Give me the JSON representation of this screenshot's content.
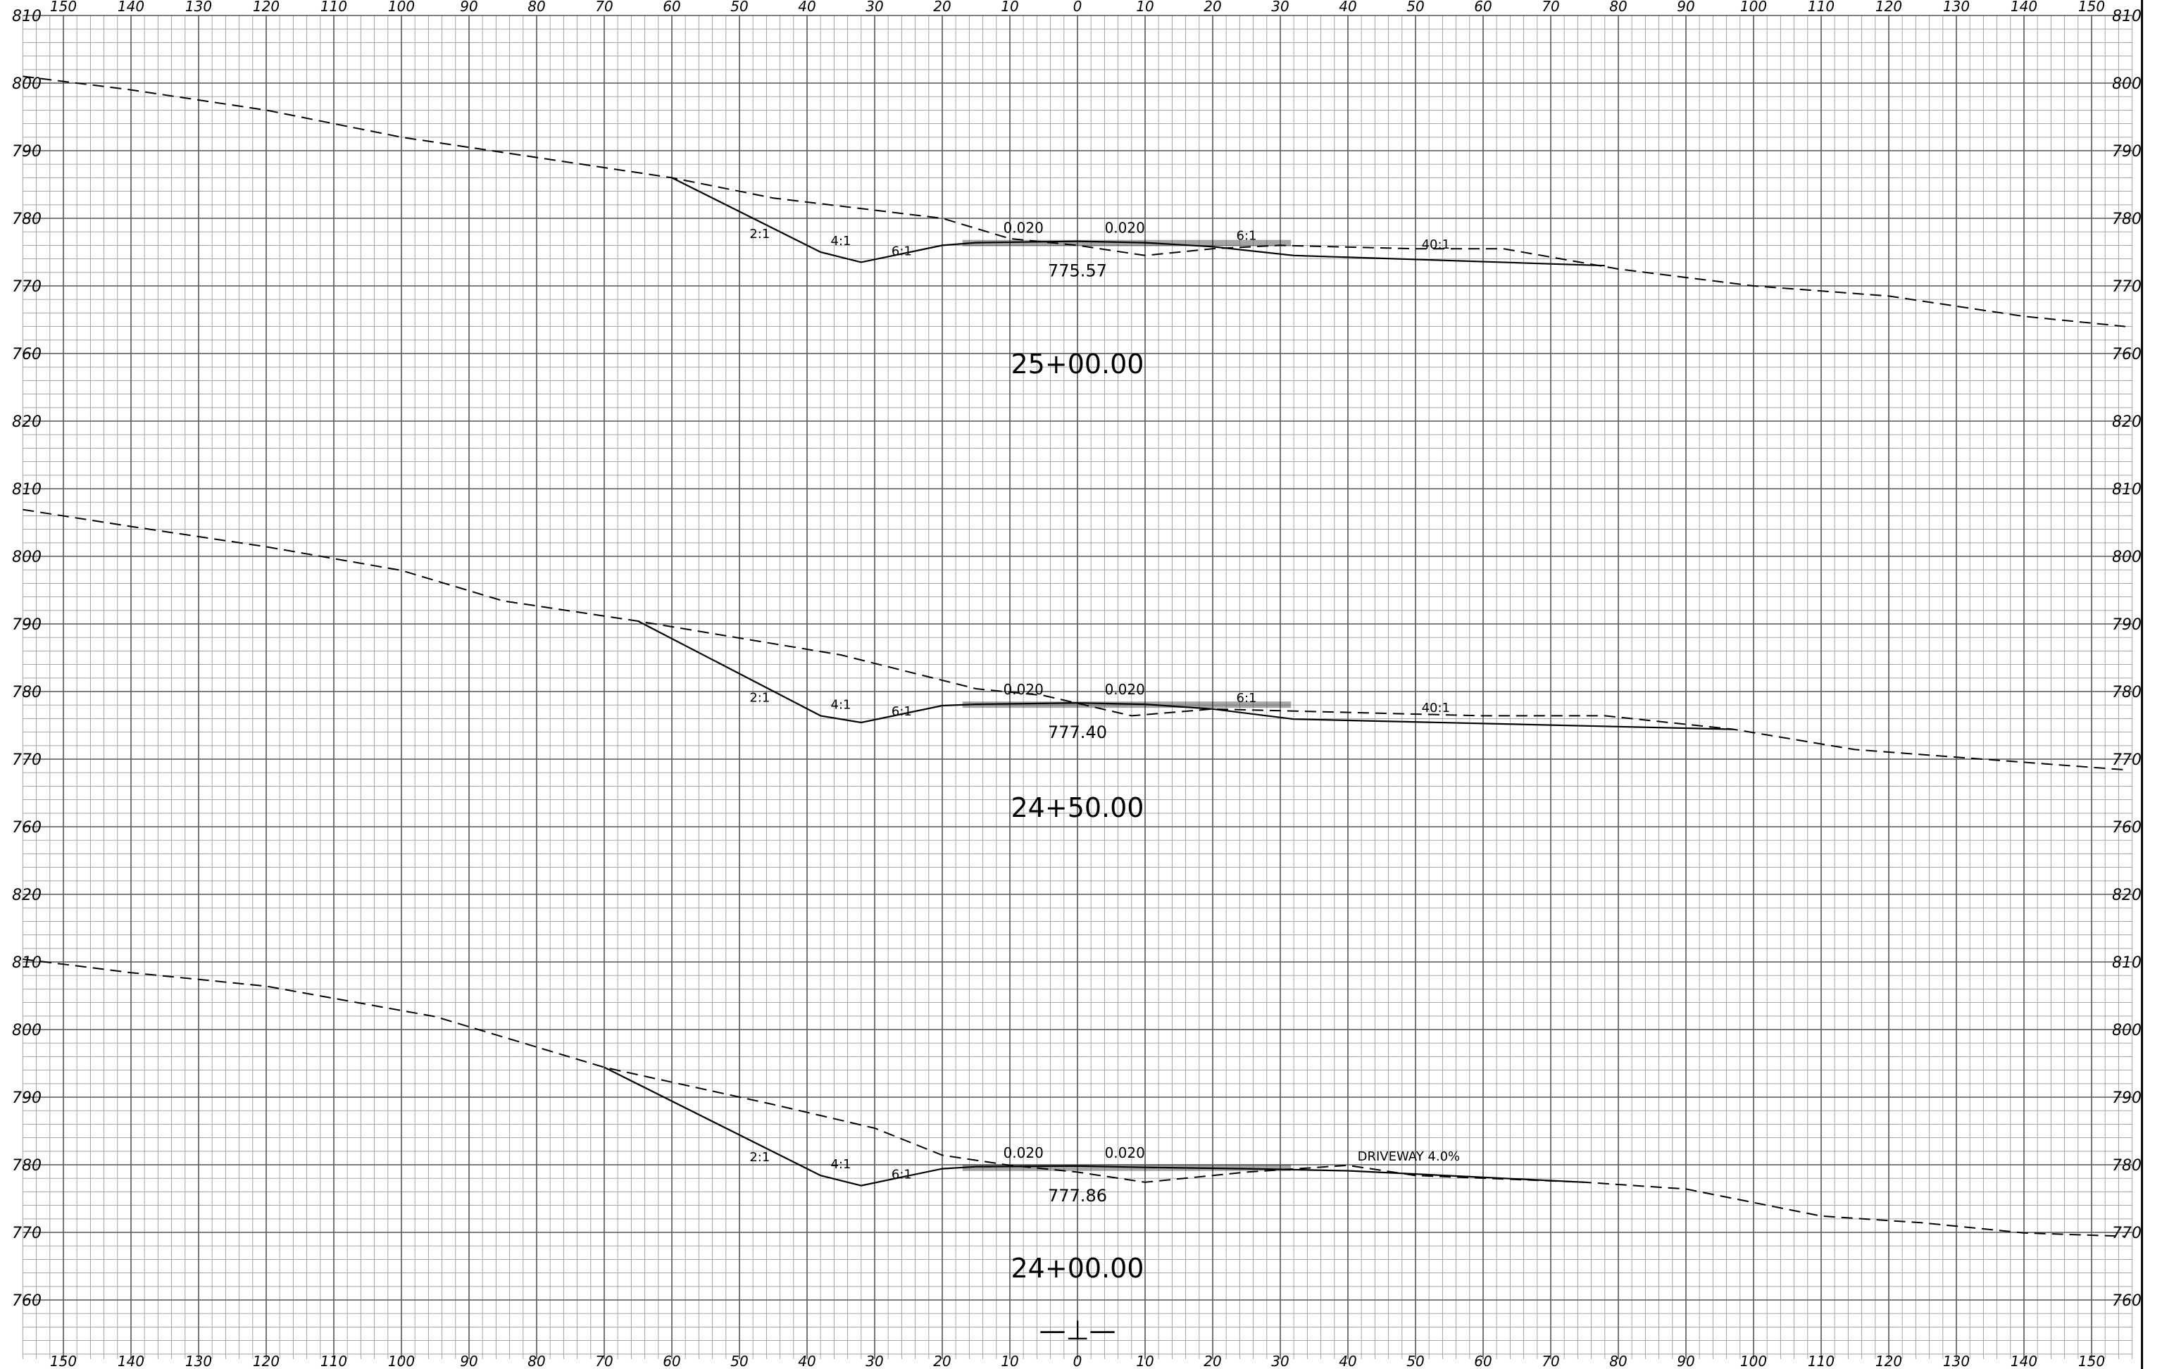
{
  "offset_labels": [
    "150",
    "140",
    "130",
    "120",
    "110",
    "100",
    "90",
    "80",
    "70",
    "60",
    "50",
    "40",
    "30",
    "20",
    "10",
    "0",
    "10",
    "20",
    "30",
    "40",
    "50",
    "60",
    "70",
    "80",
    "90",
    "100",
    "110",
    "120",
    "130",
    "140",
    "150"
  ],
  "elevation_labels": [
    "810",
    "800",
    "790",
    "780",
    "770",
    "760",
    "820",
    "810",
    "800",
    "790",
    "780",
    "770",
    "760",
    "820",
    "810",
    "800",
    "790",
    "780",
    "770",
    "760"
  ],
  "centerline_label": "—⊥—",
  "sections": [
    {
      "station": "25+00.00",
      "grade_elevation": "775.57",
      "cross_slope_left": "0.020",
      "cross_slope_right": "0.020",
      "slope_labels": [
        "2:1",
        "4:1",
        "6:1",
        "6:1",
        "40:1"
      ],
      "ground": [
        [
          -156,
          801
        ],
        [
          -140,
          799
        ],
        [
          -120,
          796
        ],
        [
          -100,
          792
        ],
        [
          -80,
          789
        ],
        [
          -60,
          786
        ],
        [
          -45,
          783
        ],
        [
          -20,
          780
        ],
        [
          -10,
          777
        ],
        [
          0,
          776
        ],
        [
          10,
          774.5
        ],
        [
          20,
          775.5
        ],
        [
          30,
          776
        ],
        [
          50,
          775.5
        ],
        [
          63,
          775.5
        ],
        [
          80,
          772.5
        ],
        [
          100,
          770
        ],
        [
          120,
          768.5
        ],
        [
          140,
          765.5
        ],
        [
          155,
          764
        ]
      ],
      "design": [
        [
          -60,
          786
        ],
        [
          -38,
          775
        ],
        [
          -32,
          773.5
        ],
        [
          -20,
          776
        ],
        [
          -15,
          776.4
        ],
        [
          0,
          776.6
        ],
        [
          10,
          776.4
        ],
        [
          20,
          775.8
        ],
        [
          32,
          774.5
        ],
        [
          78,
          773
        ]
      ]
    },
    {
      "station": "24+50.00",
      "grade_elevation": "777.40",
      "cross_slope_left": "0.020",
      "cross_slope_right": "0.020",
      "slope_labels": [
        "2:1",
        "4:1",
        "6:1",
        "6:1",
        "40:1"
      ],
      "ground": [
        [
          -156,
          806.5
        ],
        [
          -140,
          804
        ],
        [
          -120,
          801
        ],
        [
          -100,
          797.5
        ],
        [
          -85,
          793
        ],
        [
          -65,
          790
        ],
        [
          -35,
          785
        ],
        [
          -15,
          780
        ],
        [
          -5,
          779
        ],
        [
          8,
          776
        ],
        [
          20,
          777
        ],
        [
          40,
          776.5
        ],
        [
          60,
          776
        ],
        [
          78,
          776
        ],
        [
          97,
          774
        ],
        [
          115,
          771
        ],
        [
          135,
          769.5
        ],
        [
          155,
          768
        ]
      ],
      "design": [
        [
          -65,
          790
        ],
        [
          -38,
          776
        ],
        [
          -32,
          775
        ],
        [
          -20,
          777.5
        ],
        [
          -15,
          777.7
        ],
        [
          0,
          777.9
        ],
        [
          10,
          777.7
        ],
        [
          20,
          777
        ],
        [
          32,
          775.5
        ],
        [
          97,
          774
        ]
      ]
    },
    {
      "station": "24+00.00",
      "grade_elevation": "777.86",
      "cross_slope_left": "0.020",
      "cross_slope_right": "0.020",
      "slope_labels": [
        "2:1",
        "4:1",
        "6:1"
      ],
      "driveway_label": "DRIVEWAY 4.0%",
      "ground": [
        [
          -156,
          810
        ],
        [
          -140,
          808
        ],
        [
          -120,
          806
        ],
        [
          -95,
          801.5
        ],
        [
          -70,
          794
        ],
        [
          -45,
          788.5
        ],
        [
          -30,
          785
        ],
        [
          -20,
          781
        ],
        [
          -10,
          779.5
        ],
        [
          0,
          778.5
        ],
        [
          10,
          777
        ],
        [
          25,
          778.5
        ],
        [
          40,
          779.5
        ],
        [
          50,
          778
        ],
        [
          75,
          777
        ],
        [
          90,
          776
        ],
        [
          110,
          772
        ],
        [
          125,
          771
        ],
        [
          140,
          769.5
        ],
        [
          155,
          769
        ]
      ],
      "design": [
        [
          -70,
          794
        ],
        [
          -38,
          778
        ],
        [
          -32,
          776.5
        ],
        [
          -20,
          779
        ],
        [
          -15,
          779.3
        ],
        [
          0,
          779.4
        ],
        [
          10,
          779.2
        ],
        [
          25,
          779
        ],
        [
          40,
          778.7
        ],
        [
          75,
          777
        ]
      ]
    }
  ]
}
